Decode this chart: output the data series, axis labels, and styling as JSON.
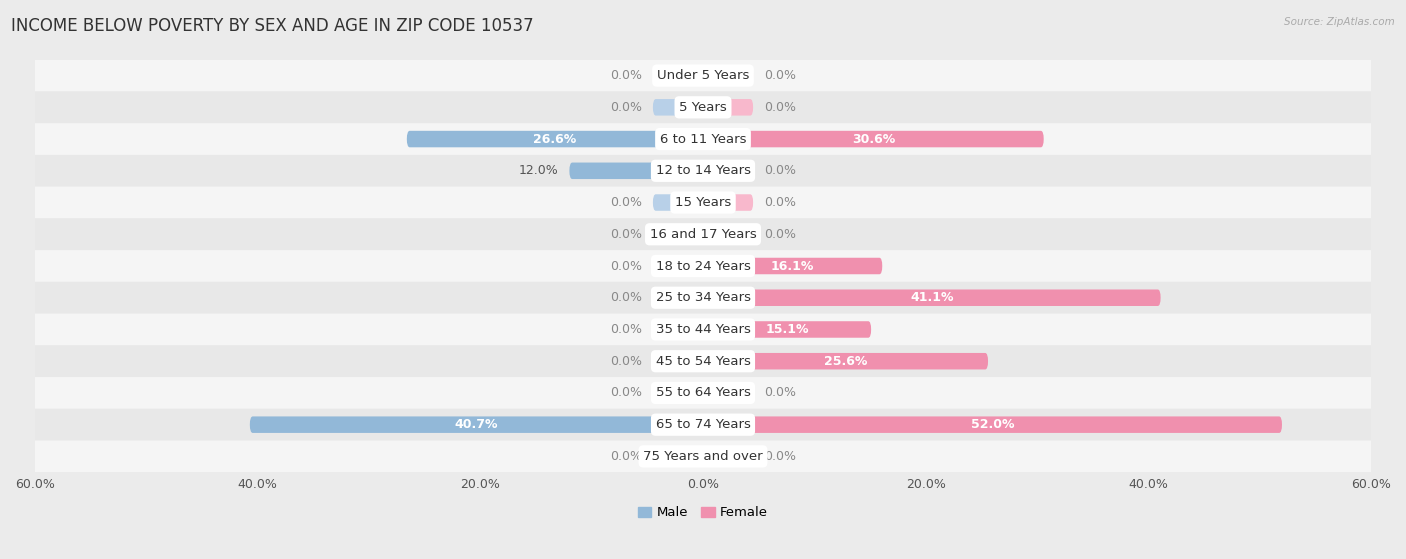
{
  "title": "INCOME BELOW POVERTY BY SEX AND AGE IN ZIP CODE 10537",
  "source": "Source: ZipAtlas.com",
  "categories": [
    "Under 5 Years",
    "5 Years",
    "6 to 11 Years",
    "12 to 14 Years",
    "15 Years",
    "16 and 17 Years",
    "18 to 24 Years",
    "25 to 34 Years",
    "35 to 44 Years",
    "45 to 54 Years",
    "55 to 64 Years",
    "65 to 74 Years",
    "75 Years and over"
  ],
  "male_values": [
    0.0,
    0.0,
    26.6,
    12.0,
    0.0,
    0.0,
    0.0,
    0.0,
    0.0,
    0.0,
    0.0,
    40.7,
    0.0
  ],
  "female_values": [
    0.0,
    0.0,
    30.6,
    0.0,
    0.0,
    0.0,
    16.1,
    41.1,
    15.1,
    25.6,
    0.0,
    52.0,
    0.0
  ],
  "male_color": "#92b8d8",
  "female_color": "#f090ae",
  "male_stub_color": "#b8d0e8",
  "female_stub_color": "#f8b8cc",
  "xlim": 60.0,
  "stub_size": 4.5,
  "bar_height": 0.52,
  "background_color": "#ebebeb",
  "row_colors": [
    "#f5f5f5",
    "#e8e8e8"
  ],
  "title_fontsize": 12,
  "label_fontsize": 9.5,
  "value_fontsize": 9,
  "axis_fontsize": 9
}
